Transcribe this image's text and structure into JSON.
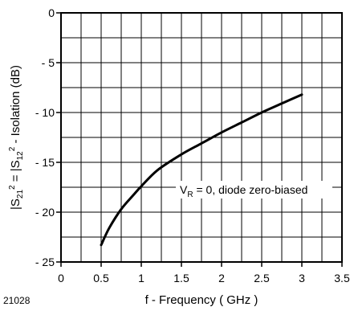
{
  "chart_data": {
    "type": "line",
    "xlabel": "f - Frequency ( GHz )",
    "ylabel_parts": {
      "a": "|S",
      "a_sub": "21",
      "a_sup": "2",
      "b": " = |S",
      "b_sub": "12",
      "b_sup": "2",
      "c": " - Isolation (dB)"
    },
    "xlim": [
      0,
      3.5
    ],
    "ylim": [
      -25,
      0
    ],
    "x_ticks": [
      0,
      0.5,
      1,
      1.5,
      2,
      2.5,
      3,
      3.5
    ],
    "x_tick_labels": [
      "0",
      "0.5",
      "1",
      "1.5",
      "2",
      "2.5",
      "3",
      "3.5"
    ],
    "y_ticks": [
      0,
      -5,
      -10,
      -15,
      -20,
      -25
    ],
    "y_tick_labels": [
      "0",
      "- 5",
      "- 10",
      "- 15",
      "- 20",
      "- 25"
    ],
    "grid": true,
    "grid_x_step": 0.25,
    "grid_y_step": 2.5,
    "series": [
      {
        "x": [
          0.5,
          0.6,
          0.75,
          0.9,
          1.0,
          1.2,
          1.5,
          1.75,
          2.0,
          2.25,
          2.5,
          2.75,
          3.0
        ],
        "y": [
          -23.3,
          -21.6,
          -19.7,
          -18.3,
          -17.4,
          -15.8,
          -14.2,
          -13.1,
          -12.0,
          -11.0,
          -10.0,
          -9.1,
          -8.2
        ]
      }
    ],
    "annotation": {
      "prefix": "V",
      "sub": "R",
      "suffix": " = 0, diode zero-biased",
      "x": 1.05,
      "y": -17.9
    },
    "figure_id": "21028"
  }
}
